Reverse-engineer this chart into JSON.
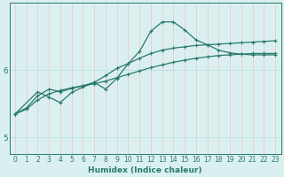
{
  "xlabel": "Humidex (Indice chaleur)",
  "ylabel": "",
  "bg_color": "#daf0f0",
  "grid_color_v": "#f0c8c8",
  "grid_color_h": "#b8dede",
  "line_color": "#2a7a6a",
  "xlim": [
    -0.5,
    23.5
  ],
  "ylim": [
    4.75,
    7.0
  ],
  "yticks": [
    5,
    6
  ],
  "xticks": [
    0,
    1,
    2,
    3,
    4,
    5,
    6,
    7,
    8,
    9,
    10,
    11,
    12,
    13,
    14,
    15,
    16,
    17,
    18,
    19,
    20,
    21,
    22,
    23
  ],
  "line1_x": [
    0,
    1,
    2,
    3,
    4,
    5,
    6,
    7,
    8,
    9,
    10,
    11,
    12,
    13,
    14,
    15,
    16,
    17,
    18,
    19,
    20,
    21,
    22,
    23
  ],
  "line1_y": [
    5.35,
    5.42,
    5.56,
    5.65,
    5.7,
    5.74,
    5.77,
    5.8,
    5.84,
    5.89,
    5.94,
    5.99,
    6.04,
    6.08,
    6.12,
    6.15,
    6.18,
    6.2,
    6.22,
    6.23,
    6.24,
    6.25,
    6.25,
    6.25
  ],
  "line2_x": [
    0,
    1,
    2,
    3,
    4,
    5,
    6,
    7,
    8,
    9,
    10,
    11,
    12,
    13,
    14,
    15,
    16,
    17,
    18,
    19,
    20,
    21,
    22,
    23
  ],
  "line2_y": [
    5.35,
    5.44,
    5.62,
    5.72,
    5.68,
    5.73,
    5.77,
    5.82,
    5.92,
    6.03,
    6.1,
    6.18,
    6.25,
    6.3,
    6.33,
    6.35,
    6.37,
    6.38,
    6.39,
    6.4,
    6.41,
    6.42,
    6.43,
    6.44
  ],
  "line3_x": [
    0,
    2,
    3,
    4,
    5,
    6,
    7,
    8,
    9,
    10,
    11,
    12,
    13,
    14,
    15,
    16,
    17,
    18,
    19,
    20,
    21,
    22,
    23
  ],
  "line3_y": [
    5.35,
    5.68,
    5.6,
    5.52,
    5.67,
    5.75,
    5.82,
    5.72,
    5.88,
    6.1,
    6.28,
    6.58,
    6.72,
    6.72,
    6.6,
    6.45,
    6.38,
    6.3,
    6.26,
    6.24,
    6.23,
    6.23,
    6.23
  ],
  "marker": "+",
  "markersize": 3.5,
  "markeredgewidth": 0.8,
  "linewidth": 0.9
}
